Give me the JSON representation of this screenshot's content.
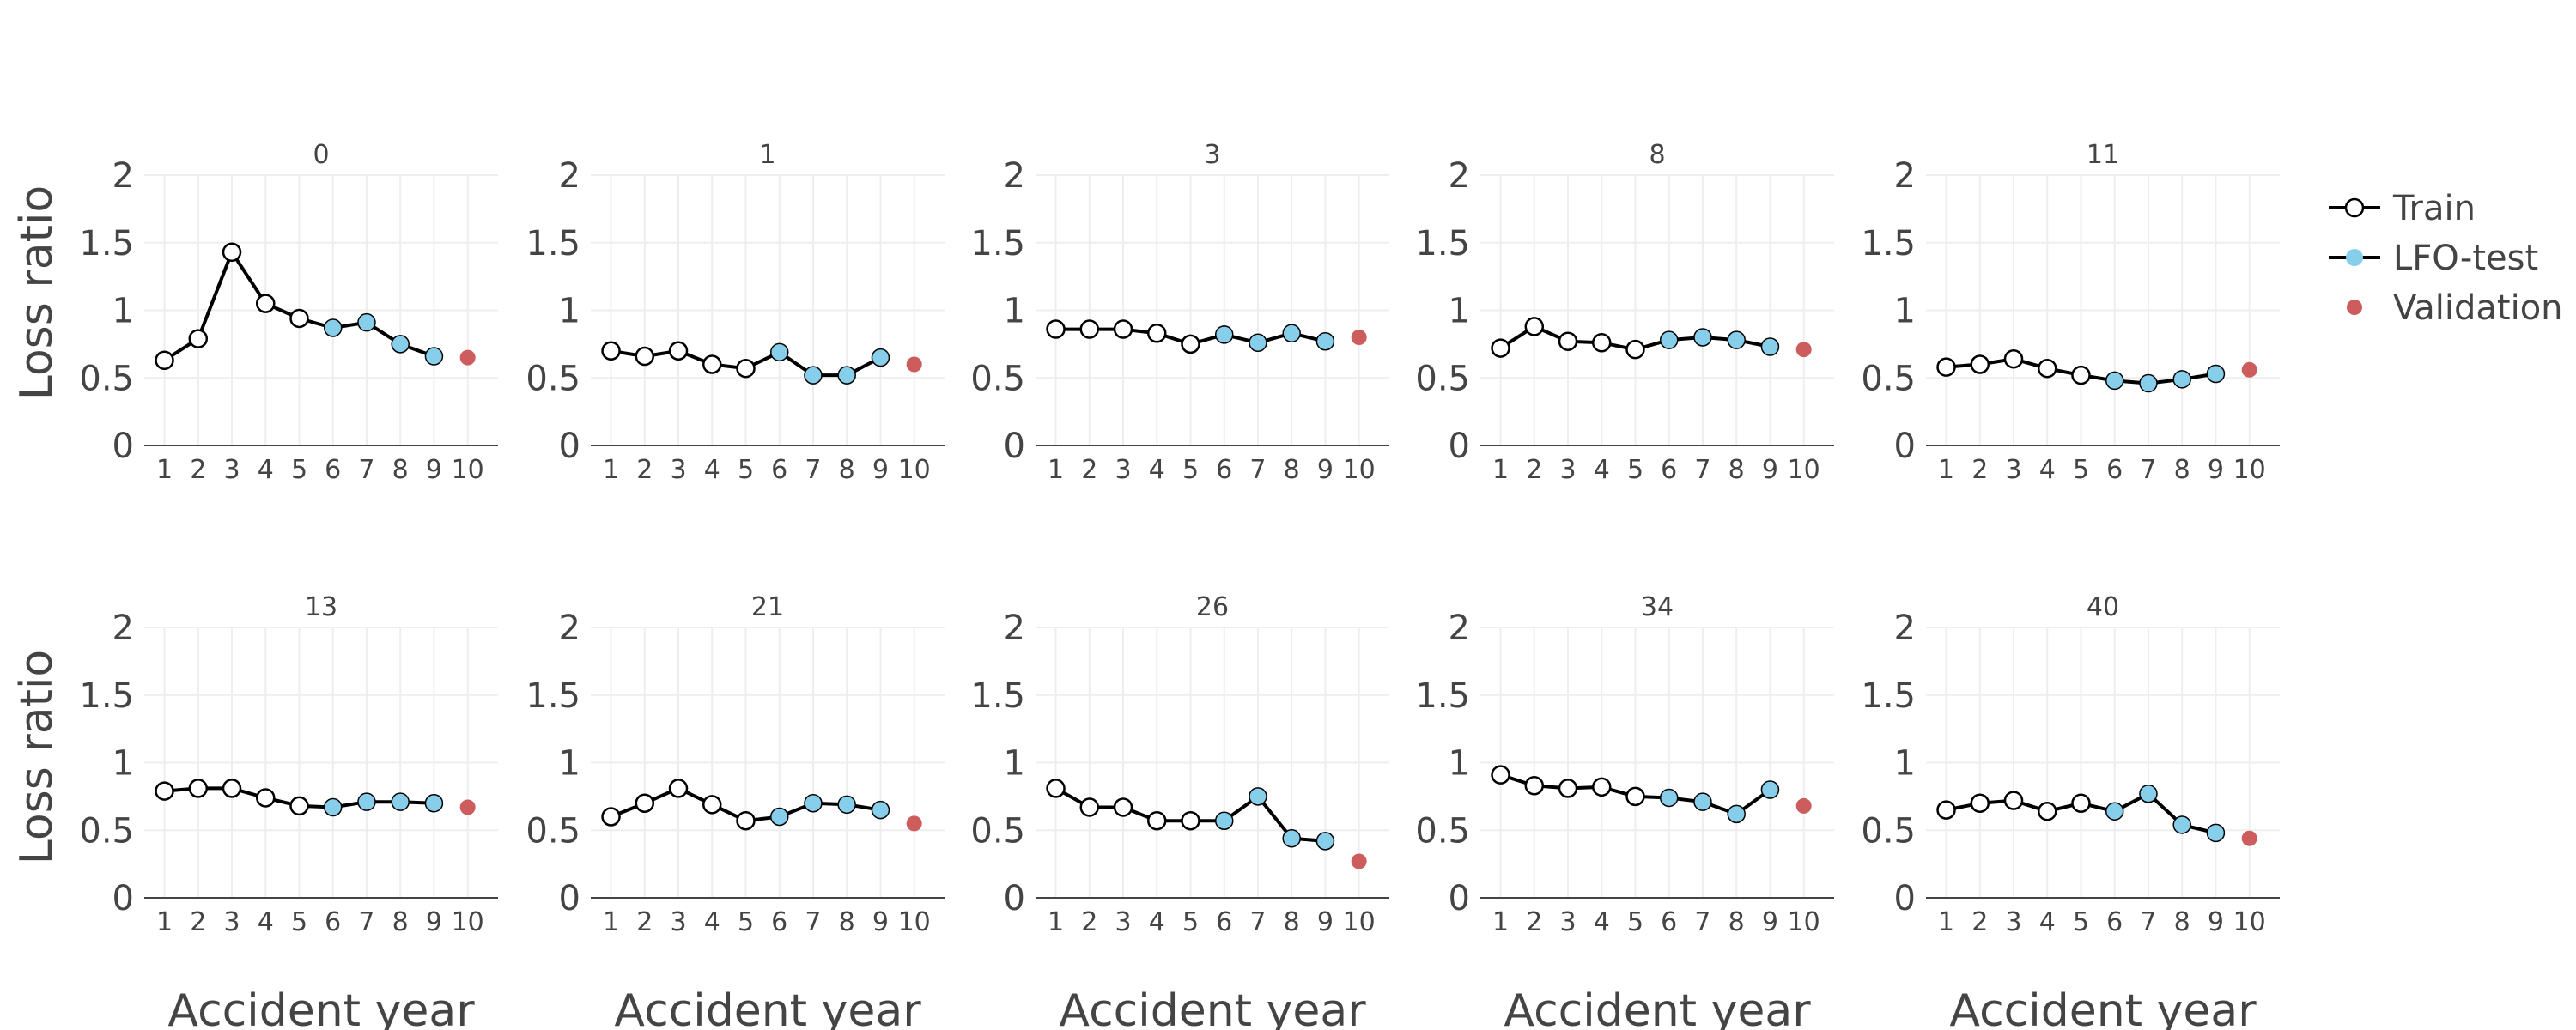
{
  "chart_data": {
    "type": "line",
    "ylabel": "Loss ratio",
    "xlabel": "Accident year",
    "x": [
      1,
      2,
      3,
      4,
      5,
      6,
      7,
      8,
      9,
      10
    ],
    "ylim": [
      0,
      2
    ],
    "yticks": [
      "0",
      "0.5",
      "1",
      "1.5",
      "2"
    ],
    "grid": true,
    "legend_position": "top-right",
    "legend": [
      {
        "name": "Train",
        "color": "#000000",
        "marker": "open-circle-line"
      },
      {
        "name": "LFO-test",
        "color": "#87ceeb",
        "marker": "filled-circle-line"
      },
      {
        "name": "Validation",
        "color": "#cd5c5c",
        "marker": "dot"
      }
    ],
    "colors": {
      "train": "#000000",
      "test": "#87ceeb",
      "validation": "#cd5c5c",
      "grid": "#eeeeee",
      "axis": "#444444"
    },
    "panels": [
      {
        "title": "0",
        "train": {
          "x": [
            1,
            2,
            3,
            4,
            5
          ],
          "y": [
            0.63,
            0.79,
            1.43,
            1.05,
            0.94
          ]
        },
        "test": {
          "x": [
            6,
            7,
            8,
            9
          ],
          "y": [
            0.87,
            0.91,
            0.75,
            0.66
          ]
        },
        "validation": {
          "x": 10,
          "y": 0.65
        }
      },
      {
        "title": "1",
        "train": {
          "x": [
            1,
            2,
            3,
            4,
            5
          ],
          "y": [
            0.7,
            0.66,
            0.7,
            0.6,
            0.57
          ]
        },
        "test": {
          "x": [
            6,
            7,
            8,
            9
          ],
          "y": [
            0.69,
            0.52,
            0.52,
            0.65
          ]
        },
        "validation": {
          "x": 10,
          "y": 0.6
        }
      },
      {
        "title": "3",
        "train": {
          "x": [
            1,
            2,
            3,
            4,
            5
          ],
          "y": [
            0.86,
            0.86,
            0.86,
            0.83,
            0.75
          ]
        },
        "test": {
          "x": [
            6,
            7,
            8,
            9
          ],
          "y": [
            0.82,
            0.76,
            0.83,
            0.77
          ]
        },
        "validation": {
          "x": 10,
          "y": 0.8
        }
      },
      {
        "title": "8",
        "train": {
          "x": [
            1,
            2,
            3,
            4,
            5
          ],
          "y": [
            0.72,
            0.88,
            0.77,
            0.76,
            0.71
          ]
        },
        "test": {
          "x": [
            6,
            7,
            8,
            9
          ],
          "y": [
            0.78,
            0.8,
            0.78,
            0.73
          ]
        },
        "validation": {
          "x": 10,
          "y": 0.71
        }
      },
      {
        "title": "11",
        "train": {
          "x": [
            1,
            2,
            3,
            4,
            5
          ],
          "y": [
            0.58,
            0.6,
            0.64,
            0.57,
            0.52
          ]
        },
        "test": {
          "x": [
            6,
            7,
            8,
            9
          ],
          "y": [
            0.48,
            0.46,
            0.49,
            0.53
          ]
        },
        "validation": {
          "x": 10,
          "y": 0.56
        }
      },
      {
        "title": "13",
        "train": {
          "x": [
            1,
            2,
            3,
            4,
            5
          ],
          "y": [
            0.79,
            0.81,
            0.81,
            0.74,
            0.68
          ]
        },
        "test": {
          "x": [
            6,
            7,
            8,
            9
          ],
          "y": [
            0.67,
            0.71,
            0.71,
            0.7
          ]
        },
        "validation": {
          "x": 10,
          "y": 0.67
        }
      },
      {
        "title": "21",
        "train": {
          "x": [
            1,
            2,
            3,
            4,
            5
          ],
          "y": [
            0.6,
            0.7,
            0.81,
            0.69,
            0.57
          ]
        },
        "test": {
          "x": [
            6,
            7,
            8,
            9
          ],
          "y": [
            0.6,
            0.7,
            0.69,
            0.65
          ]
        },
        "validation": {
          "x": 10,
          "y": 0.55
        }
      },
      {
        "title": "26",
        "train": {
          "x": [
            1,
            2,
            3,
            4,
            5
          ],
          "y": [
            0.81,
            0.67,
            0.67,
            0.57,
            0.57
          ]
        },
        "test": {
          "x": [
            6,
            7,
            8,
            9
          ],
          "y": [
            0.57,
            0.75,
            0.44,
            0.42
          ]
        },
        "validation": {
          "x": 10,
          "y": 0.27
        }
      },
      {
        "title": "34",
        "train": {
          "x": [
            1,
            2,
            3,
            4,
            5
          ],
          "y": [
            0.91,
            0.83,
            0.81,
            0.82,
            0.75
          ]
        },
        "test": {
          "x": [
            6,
            7,
            8,
            9
          ],
          "y": [
            0.74,
            0.71,
            0.62,
            0.8
          ]
        },
        "validation": {
          "x": 10,
          "y": 0.68
        }
      },
      {
        "title": "40",
        "train": {
          "x": [
            1,
            2,
            3,
            4,
            5
          ],
          "y": [
            0.65,
            0.7,
            0.72,
            0.64,
            0.7
          ]
        },
        "test": {
          "x": [
            6,
            7,
            8,
            9
          ],
          "y": [
            0.64,
            0.77,
            0.54,
            0.48
          ]
        },
        "validation": {
          "x": 10,
          "y": 0.44
        }
      }
    ]
  }
}
